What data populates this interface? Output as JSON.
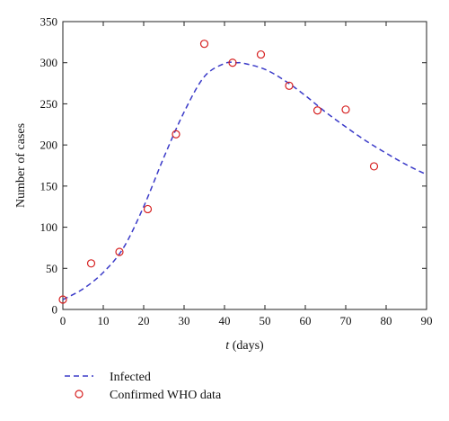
{
  "chart_data": {
    "type": "line",
    "xlabel_var": "t",
    "xlabel_unit": " (days)",
    "ylabel": "Number of cases",
    "xlim": [
      0,
      90
    ],
    "ylim": [
      0,
      350
    ],
    "x_ticks": [
      0,
      10,
      20,
      30,
      40,
      50,
      60,
      70,
      80,
      90
    ],
    "y_ticks": [
      0,
      50,
      100,
      150,
      200,
      250,
      300,
      350
    ],
    "grid": false,
    "legend_position": "bottom-left",
    "colors": {
      "infected": "#3a3ac8",
      "who": "#d62020"
    },
    "series": [
      {
        "name": "Infected",
        "style": "dashed-line",
        "x": [
          0,
          5,
          10,
          15,
          20,
          25,
          30,
          35,
          40,
          43,
          45,
          50,
          55,
          60,
          65,
          70,
          75,
          80,
          85,
          90
        ],
        "y": [
          12,
          25,
          45,
          75,
          125,
          185,
          240,
          283,
          299,
          300,
          299,
          292,
          278,
          260,
          240,
          222,
          205,
          190,
          176,
          164
        ]
      },
      {
        "name": "Confirmed WHO data",
        "style": "open-circle-markers",
        "x": [
          0,
          7,
          14,
          21,
          28,
          35,
          42,
          49,
          56,
          63,
          70,
          77
        ],
        "y": [
          12,
          56,
          70,
          122,
          213,
          323,
          300,
          310,
          272,
          242,
          243,
          174
        ]
      }
    ]
  }
}
